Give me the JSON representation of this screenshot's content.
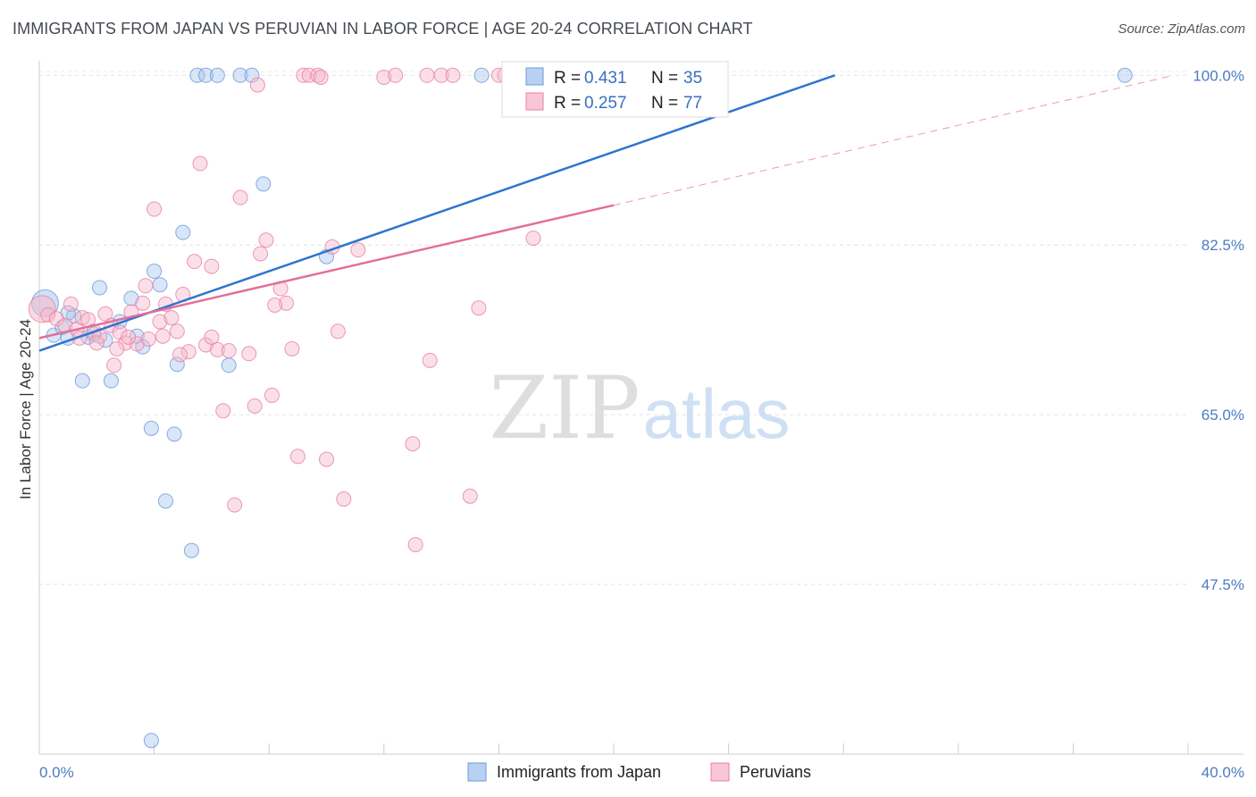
{
  "header": {
    "title": "IMMIGRANTS FROM JAPAN VS PERUVIAN IN LABOR FORCE | AGE 20-24 CORRELATION CHART",
    "source": "Source: ZipAtlas.com"
  },
  "watermark": {
    "zip": "ZIP",
    "atlas": "atlas"
  },
  "colors": {
    "blue_fill": "#a9c8f0",
    "blue_stroke": "#6b9ad8",
    "blue_line": "#2f74d0",
    "pink_fill": "#f6b9cc",
    "pink_stroke": "#e8809f",
    "pink_line": "#e0709a"
  },
  "legend": {
    "r_label": "R =",
    "n_label": "N =",
    "rows": [
      {
        "r": "0.431",
        "n": "35"
      },
      {
        "r": "0.257",
        "n": "77"
      }
    ]
  },
  "chart_data": {
    "type": "scatter",
    "title": "IMMIGRANTS FROM JAPAN VS PERUVIAN IN LABOR FORCE | AGE 20-24 CORRELATION CHART",
    "xlabel": "",
    "ylabel": "In Labor Force | Age 20-24",
    "xlim": [
      0,
      40
    ],
    "ylim": [
      30,
      101.5
    ],
    "x_tick_labels": [
      "0.0%",
      "40.0%"
    ],
    "y_ticks": [
      47.5,
      65.0,
      82.5,
      100.0
    ],
    "y_tick_labels": [
      "47.5%",
      "65.0%",
      "82.5%",
      "100.0%"
    ],
    "grid": true,
    "legend_position": "top-center",
    "series": [
      {
        "name": "Immigrants from Japan",
        "color": "#6b9ad8",
        "points": [
          [
            0.2,
            76.5
          ],
          [
            0.5,
            73.2
          ],
          [
            0.8,
            74.0
          ],
          [
            1.0,
            72.9
          ],
          [
            1.2,
            75.2
          ],
          [
            1.5,
            68.5
          ],
          [
            1.7,
            73.0
          ],
          [
            1.9,
            73.3
          ],
          [
            2.1,
            78.1
          ],
          [
            2.3,
            72.7
          ],
          [
            2.5,
            68.5
          ],
          [
            2.8,
            74.6
          ],
          [
            3.2,
            77.0
          ],
          [
            3.4,
            73.1
          ],
          [
            3.6,
            72.0
          ],
          [
            3.9,
            63.6
          ],
          [
            4.0,
            79.8
          ],
          [
            4.2,
            78.4
          ],
          [
            4.4,
            56.1
          ],
          [
            4.7,
            63.0
          ],
          [
            4.8,
            70.2
          ],
          [
            5.0,
            83.8
          ],
          [
            5.3,
            51.0
          ],
          [
            5.5,
            100.0
          ],
          [
            5.8,
            100.0
          ],
          [
            6.2,
            100.0
          ],
          [
            6.6,
            70.1
          ],
          [
            7.0,
            100.0
          ],
          [
            7.4,
            100.0
          ],
          [
            7.8,
            88.8
          ],
          [
            10.0,
            81.3
          ],
          [
            3.9,
            31.4
          ],
          [
            15.4,
            100.0
          ],
          [
            37.8,
            100.0
          ],
          [
            1.0,
            75.5
          ]
        ]
      },
      {
        "name": "Peruvians",
        "color": "#e8809f",
        "points": [
          [
            0.1,
            75.9
          ],
          [
            0.3,
            75.3
          ],
          [
            0.6,
            74.9
          ],
          [
            0.9,
            74.2
          ],
          [
            1.1,
            76.4
          ],
          [
            1.3,
            73.8
          ],
          [
            1.5,
            75.0
          ],
          [
            1.7,
            74.8
          ],
          [
            1.9,
            73.6
          ],
          [
            2.1,
            73.1
          ],
          [
            2.3,
            75.4
          ],
          [
            2.5,
            74.2
          ],
          [
            2.6,
            70.1
          ],
          [
            2.8,
            73.5
          ],
          [
            3.0,
            72.4
          ],
          [
            3.2,
            75.6
          ],
          [
            3.4,
            72.3
          ],
          [
            3.6,
            76.5
          ],
          [
            3.8,
            72.8
          ],
          [
            4.0,
            86.2
          ],
          [
            4.2,
            74.6
          ],
          [
            4.4,
            76.4
          ],
          [
            4.6,
            75.0
          ],
          [
            4.8,
            73.6
          ],
          [
            5.0,
            77.4
          ],
          [
            5.2,
            71.5
          ],
          [
            5.4,
            80.8
          ],
          [
            5.6,
            90.9
          ],
          [
            5.8,
            72.2
          ],
          [
            6.0,
            80.3
          ],
          [
            6.2,
            71.7
          ],
          [
            6.4,
            65.4
          ],
          [
            6.6,
            71.6
          ],
          [
            6.8,
            55.7
          ],
          [
            7.0,
            87.4
          ],
          [
            7.3,
            71.3
          ],
          [
            7.5,
            65.9
          ],
          [
            7.7,
            81.6
          ],
          [
            7.9,
            83.0
          ],
          [
            8.1,
            67.0
          ],
          [
            8.4,
            78.0
          ],
          [
            8.6,
            76.5
          ],
          [
            8.8,
            71.8
          ],
          [
            9.0,
            60.7
          ],
          [
            9.2,
            100.0
          ],
          [
            9.4,
            100.0
          ],
          [
            9.7,
            100.0
          ],
          [
            10.0,
            60.4
          ],
          [
            10.2,
            82.3
          ],
          [
            10.4,
            73.6
          ],
          [
            10.6,
            56.3
          ],
          [
            11.1,
            82.0
          ],
          [
            12.0,
            99.8
          ],
          [
            12.4,
            100.0
          ],
          [
            13.5,
            100.0
          ],
          [
            14.0,
            100.0
          ],
          [
            14.4,
            100.0
          ],
          [
            16.2,
            100.0
          ],
          [
            16.7,
            100.0
          ],
          [
            16.0,
            100.0
          ],
          [
            15.0,
            56.6
          ],
          [
            13.1,
            51.6
          ],
          [
            13.6,
            70.6
          ],
          [
            17.2,
            83.2
          ],
          [
            3.1,
            73.0
          ],
          [
            1.4,
            72.9
          ],
          [
            2.0,
            72.4
          ],
          [
            6.0,
            73.0
          ],
          [
            9.8,
            99.8
          ],
          [
            3.7,
            78.3
          ],
          [
            15.3,
            76.0
          ],
          [
            13.0,
            62.0
          ],
          [
            4.3,
            73.1
          ],
          [
            2.7,
            71.8
          ],
          [
            7.6,
            99.0
          ],
          [
            8.2,
            76.3
          ],
          [
            4.9,
            71.2
          ]
        ]
      }
    ],
    "trendlines": [
      {
        "series": "Immigrants from Japan",
        "from": [
          0,
          71.6
        ],
        "to": [
          27.7,
          100.0
        ],
        "style": "solid"
      },
      {
        "series": "Peruvians",
        "from": [
          0,
          72.9
        ],
        "to": [
          20,
          86.6
        ],
        "style": "solid"
      },
      {
        "series": "Peruvians",
        "from": [
          20,
          86.6
        ],
        "to": [
          39.5,
          100.0
        ],
        "style": "dashed"
      }
    ]
  },
  "bottom_legend": [
    {
      "label": "Immigrants from Japan"
    },
    {
      "label": "Peruvians"
    }
  ]
}
